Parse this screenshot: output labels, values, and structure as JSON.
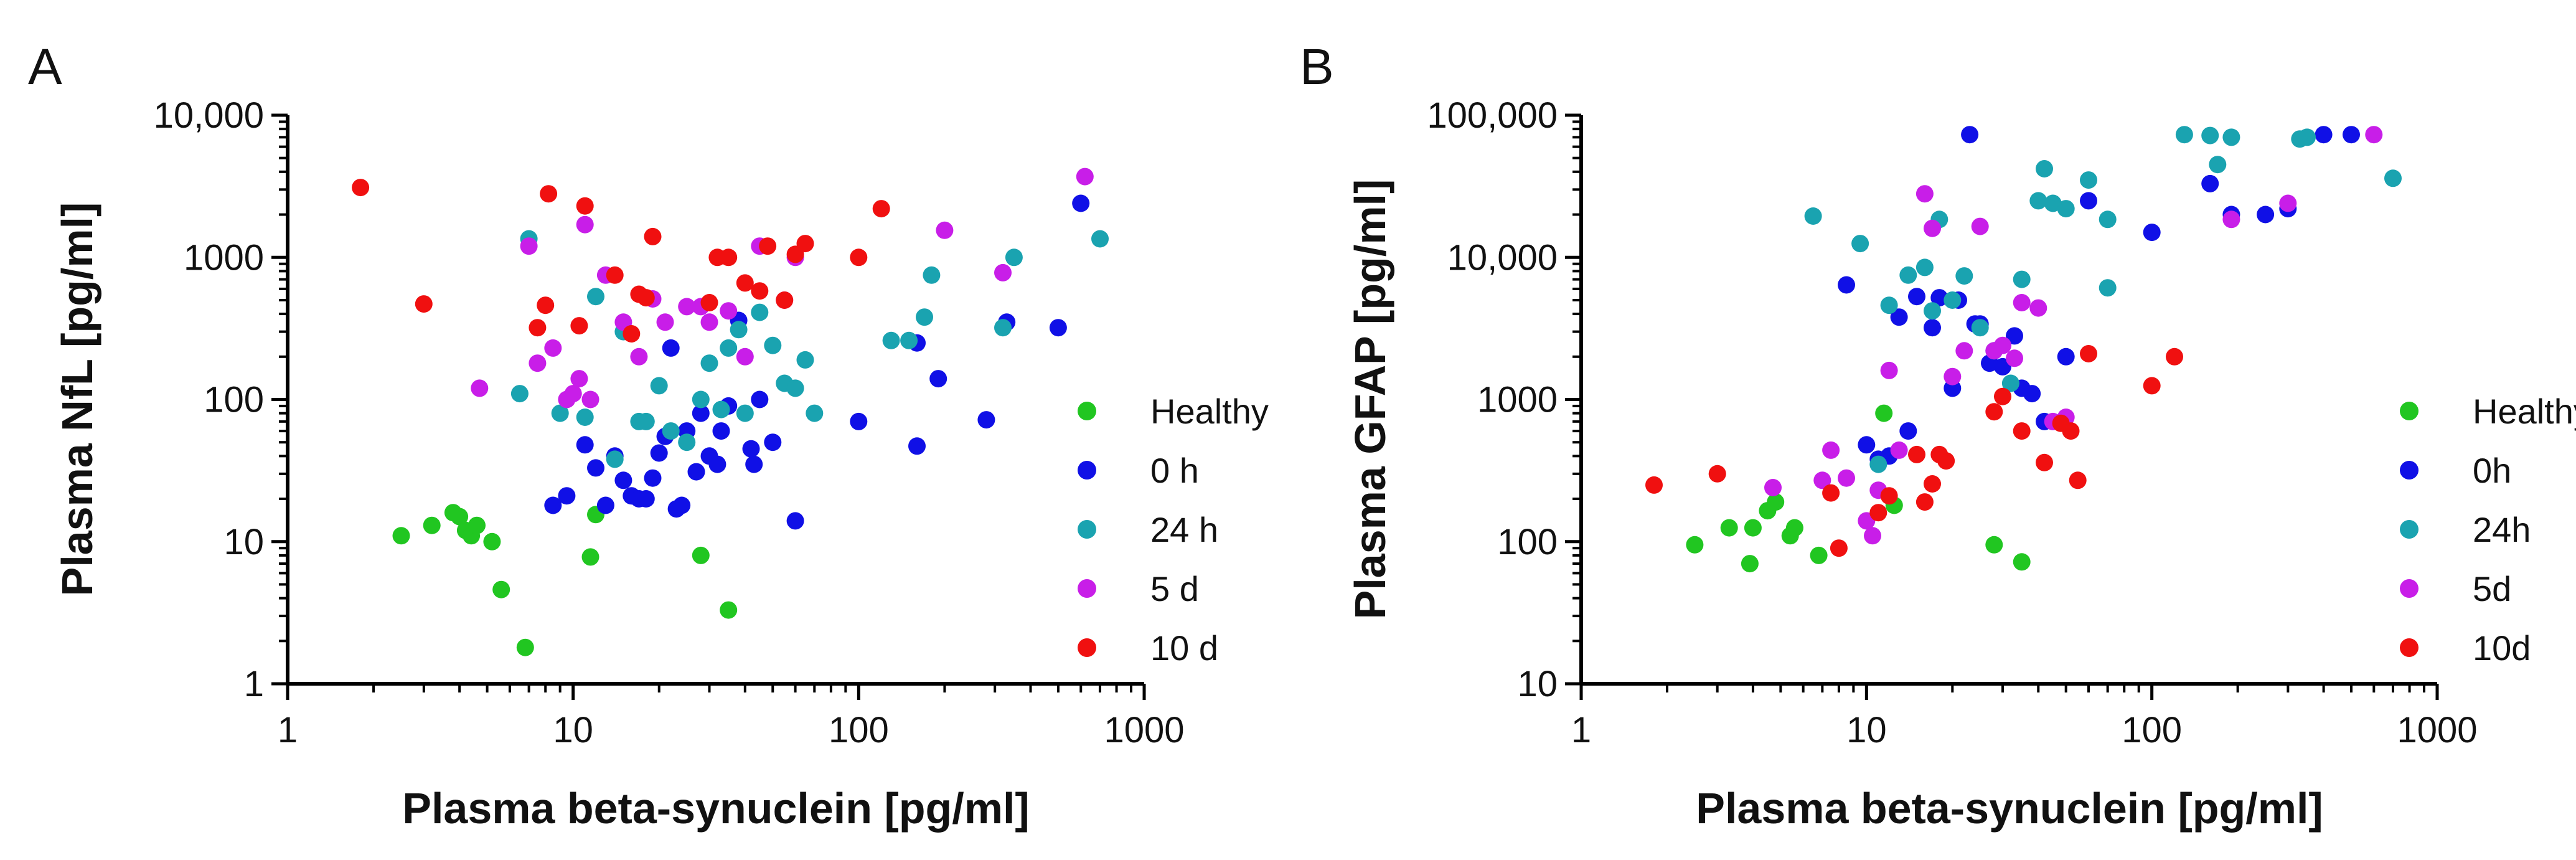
{
  "chart_data": [
    {
      "type": "scatter",
      "panel": "A",
      "xlabel": "Plasma beta-synuclein [pg/ml]",
      "ylabel": "Plasma NfL [pg/ml]",
      "x_scale": "log",
      "y_scale": "log",
      "xlim": [
        1,
        1000
      ],
      "ylim": [
        1,
        10000
      ],
      "x_ticks": [
        {
          "value": 1,
          "label": "1"
        },
        {
          "value": 10,
          "label": "10"
        },
        {
          "value": 100,
          "label": "100"
        },
        {
          "value": 1000,
          "label": "1000"
        }
      ],
      "y_ticks": [
        {
          "value": 1,
          "label": "1"
        },
        {
          "value": 10,
          "label": "10"
        },
        {
          "value": 100,
          "label": "100"
        },
        {
          "value": 1000,
          "label": "1000"
        },
        {
          "value": 10000,
          "label": "10,000"
        }
      ],
      "legend_position": "right",
      "series": [
        {
          "name": "Healthy",
          "color": "#21c621",
          "points": [
            [
              2.5,
              11
            ],
            [
              3.2,
              13
            ],
            [
              3.8,
              16
            ],
            [
              4.0,
              15
            ],
            [
              4.2,
              12
            ],
            [
              4.4,
              11
            ],
            [
              4.6,
              13
            ],
            [
              5.2,
              10
            ],
            [
              5.6,
              4.6
            ],
            [
              6.8,
              1.8
            ],
            [
              11.5,
              7.8
            ],
            [
              12.0,
              15.5
            ],
            [
              28,
              8
            ],
            [
              35,
              3.3
            ]
          ]
        },
        {
          "name": "0 h",
          "color": "#1010e6",
          "points": [
            [
              8.5,
              18
            ],
            [
              9.5,
              21
            ],
            [
              11,
              48
            ],
            [
              12,
              33
            ],
            [
              13,
              18
            ],
            [
              14,
              40
            ],
            [
              15,
              27
            ],
            [
              16,
              21
            ],
            [
              17,
              20
            ],
            [
              18,
              20
            ],
            [
              19,
              28
            ],
            [
              20,
              42
            ],
            [
              21,
              55
            ],
            [
              22,
              230
            ],
            [
              23,
              17
            ],
            [
              24,
              18
            ],
            [
              25,
              60
            ],
            [
              27,
              31
            ],
            [
              28,
              80
            ],
            [
              30,
              40
            ],
            [
              32,
              35
            ],
            [
              33,
              60
            ],
            [
              35,
              90
            ],
            [
              38,
              360
            ],
            [
              42,
              45
            ],
            [
              43,
              35
            ],
            [
              45,
              100
            ],
            [
              50,
              50
            ],
            [
              60,
              14
            ],
            [
              100,
              70
            ],
            [
              160,
              250
            ],
            [
              160,
              47
            ],
            [
              190,
              140
            ],
            [
              280,
              72
            ],
            [
              330,
              350
            ],
            [
              500,
              320
            ],
            [
              600,
              2400
            ]
          ]
        },
        {
          "name": "24 h",
          "color": "#1aa3b0",
          "points": [
            [
              6.5,
              110
            ],
            [
              7,
              1350
            ],
            [
              9,
              80
            ],
            [
              11,
              75
            ],
            [
              12,
              530
            ],
            [
              14,
              38
            ],
            [
              15,
              300
            ],
            [
              17,
              70
            ],
            [
              18,
              70
            ],
            [
              20,
              125
            ],
            [
              22,
              60
            ],
            [
              25,
              50
            ],
            [
              28,
              100
            ],
            [
              30,
              180
            ],
            [
              33,
              85
            ],
            [
              35,
              230
            ],
            [
              38,
              310
            ],
            [
              40,
              80
            ],
            [
              45,
              410
            ],
            [
              50,
              240
            ],
            [
              55,
              130
            ],
            [
              60,
              120
            ],
            [
              65,
              190
            ],
            [
              70,
              80
            ],
            [
              130,
              260
            ],
            [
              150,
              260
            ],
            [
              170,
              380
            ],
            [
              180,
              750
            ],
            [
              320,
              320
            ],
            [
              350,
              1000
            ],
            [
              700,
              1350
            ]
          ]
        },
        {
          "name": "5 d",
          "color": "#c81ee8",
          "points": [
            [
              4.7,
              120
            ],
            [
              7,
              1200
            ],
            [
              7.5,
              180
            ],
            [
              8.5,
              230
            ],
            [
              9.5,
              100
            ],
            [
              10,
              110
            ],
            [
              10.5,
              140
            ],
            [
              11,
              1700
            ],
            [
              11.5,
              100
            ],
            [
              13,
              750
            ],
            [
              15,
              350
            ],
            [
              17,
              200
            ],
            [
              19,
              510
            ],
            [
              21,
              350
            ],
            [
              25,
              450
            ],
            [
              28,
              450
            ],
            [
              30,
              350
            ],
            [
              35,
              420
            ],
            [
              40,
              200
            ],
            [
              45,
              1200
            ],
            [
              55,
              500
            ],
            [
              60,
              1000
            ],
            [
              200,
              1550
            ],
            [
              320,
              780
            ],
            [
              620,
              3700
            ]
          ]
        },
        {
          "name": "10 d",
          "color": "#f01010",
          "points": [
            [
              1.8,
              3100
            ],
            [
              3,
              470
            ],
            [
              7.5,
              320
            ],
            [
              8,
              460
            ],
            [
              8.2,
              2800
            ],
            [
              10.5,
              330
            ],
            [
              11,
              2300
            ],
            [
              14,
              750
            ],
            [
              16,
              290
            ],
            [
              17,
              550
            ],
            [
              18,
              520
            ],
            [
              19,
              1400
            ],
            [
              30,
              480
            ],
            [
              32,
              1000
            ],
            [
              35,
              1000
            ],
            [
              40,
              660
            ],
            [
              45,
              580
            ],
            [
              48,
              1200
            ],
            [
              55,
              500
            ],
            [
              60,
              1050
            ],
            [
              65,
              1250
            ],
            [
              100,
              1000
            ],
            [
              120,
              2200
            ]
          ]
        }
      ]
    },
    {
      "type": "scatter",
      "panel": "B",
      "xlabel": "Plasma beta-synuclein [pg/ml]",
      "ylabel": "Plasma GFAP [pg/ml]",
      "x_scale": "log",
      "y_scale": "log",
      "xlim": [
        1,
        1000
      ],
      "ylim": [
        10,
        100000
      ],
      "x_ticks": [
        {
          "value": 1,
          "label": "1"
        },
        {
          "value": 10,
          "label": "10"
        },
        {
          "value": 100,
          "label": "100"
        },
        {
          "value": 1000,
          "label": "1000"
        }
      ],
      "y_ticks": [
        {
          "value": 10,
          "label": "10"
        },
        {
          "value": 100,
          "label": "100"
        },
        {
          "value": 1000,
          "label": "1000"
        },
        {
          "value": 10000,
          "label": "10,000"
        },
        {
          "value": 100000,
          "label": "100,000"
        }
      ],
      "legend_position": "right",
      "series": [
        {
          "name": "Healthy",
          "color": "#21c621",
          "points": [
            [
              2.5,
              95
            ],
            [
              3.3,
              125
            ],
            [
              3.9,
              70
            ],
            [
              4.0,
              125
            ],
            [
              4.5,
              165
            ],
            [
              4.8,
              190
            ],
            [
              5.4,
              110
            ],
            [
              5.6,
              125
            ],
            [
              6.8,
              80
            ],
            [
              11.5,
              800
            ],
            [
              12.5,
              180
            ],
            [
              28,
              95
            ],
            [
              35,
              72
            ]
          ]
        },
        {
          "name": "0h",
          "color": "#1010e6",
          "points": [
            [
              8.5,
              6400
            ],
            [
              10,
              480
            ],
            [
              11,
              380
            ],
            [
              12,
              400
            ],
            [
              13,
              3800
            ],
            [
              14,
              600
            ],
            [
              15,
              5300
            ],
            [
              17,
              3200
            ],
            [
              18,
              5200
            ],
            [
              20,
              1200
            ],
            [
              21,
              5000
            ],
            [
              23,
              73000
            ],
            [
              24,
              3400
            ],
            [
              25,
              3400
            ],
            [
              27,
              1800
            ],
            [
              30,
              1700
            ],
            [
              33,
              2800
            ],
            [
              35,
              1200
            ],
            [
              38,
              1100
            ],
            [
              42,
              700
            ],
            [
              50,
              2000
            ],
            [
              60,
              25000
            ],
            [
              100,
              15000
            ],
            [
              160,
              33000
            ],
            [
              190,
              20000
            ],
            [
              250,
              20000
            ],
            [
              300,
              22000
            ],
            [
              400,
              73000
            ],
            [
              500,
              73000
            ]
          ]
        },
        {
          "name": "24h",
          "color": "#1aa3b0",
          "points": [
            [
              6.5,
              19500
            ],
            [
              9.5,
              12500
            ],
            [
              11,
              350
            ],
            [
              12,
              4600
            ],
            [
              14,
              7500
            ],
            [
              16,
              8500
            ],
            [
              17,
              4200
            ],
            [
              18,
              18500
            ],
            [
              20,
              5000
            ],
            [
              22,
              7400
            ],
            [
              25,
              3200
            ],
            [
              28,
              2200
            ],
            [
              32,
              1300
            ],
            [
              35,
              7000
            ],
            [
              40,
              25000
            ],
            [
              42,
              42000
            ],
            [
              45,
              24000
            ],
            [
              50,
              22000
            ],
            [
              60,
              35000
            ],
            [
              70,
              18500
            ],
            [
              70,
              6100
            ],
            [
              130,
              73000
            ],
            [
              160,
              72000
            ],
            [
              170,
              45000
            ],
            [
              190,
              70000
            ],
            [
              330,
              68000
            ],
            [
              350,
              70000
            ],
            [
              700,
              36000
            ]
          ]
        },
        {
          "name": "5d",
          "color": "#c81ee8",
          "points": [
            [
              4.7,
              240
            ],
            [
              7,
              270
            ],
            [
              7.5,
              440
            ],
            [
              8.5,
              280
            ],
            [
              10,
              140
            ],
            [
              10.5,
              110
            ],
            [
              11,
              230
            ],
            [
              12,
              1600
            ],
            [
              13,
              440
            ],
            [
              16,
              28000
            ],
            [
              17,
              16000
            ],
            [
              20,
              1450
            ],
            [
              22,
              2200
            ],
            [
              25,
              16500
            ],
            [
              28,
              2200
            ],
            [
              30,
              2400
            ],
            [
              33,
              1950
            ],
            [
              35,
              4800
            ],
            [
              40,
              4400
            ],
            [
              45,
              700
            ],
            [
              50,
              750
            ],
            [
              190,
              18500
            ],
            [
              300,
              24000
            ],
            [
              600,
              73000
            ]
          ]
        },
        {
          "name": "10d",
          "color": "#f01010",
          "points": [
            [
              1.8,
              250
            ],
            [
              3,
              300
            ],
            [
              7.5,
              220
            ],
            [
              8,
              90
            ],
            [
              11,
              160
            ],
            [
              12,
              210
            ],
            [
              15,
              410
            ],
            [
              16,
              190
            ],
            [
              17,
              255
            ],
            [
              18,
              410
            ],
            [
              19,
              370
            ],
            [
              28,
              820
            ],
            [
              30,
              1050
            ],
            [
              35,
              600
            ],
            [
              42,
              360
            ],
            [
              48,
              680
            ],
            [
              52,
              600
            ],
            [
              55,
              270
            ],
            [
              60,
              2100
            ],
            [
              100,
              1250
            ],
            [
              120,
              2000
            ]
          ]
        }
      ]
    }
  ]
}
